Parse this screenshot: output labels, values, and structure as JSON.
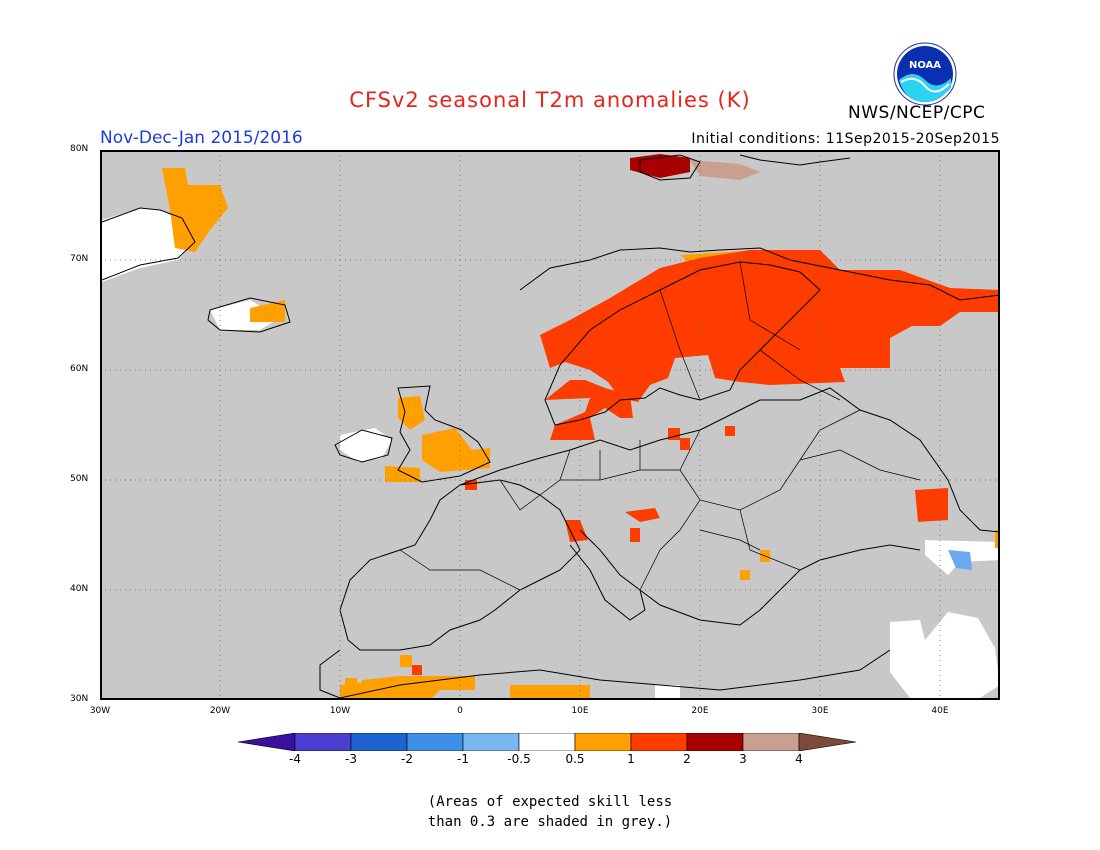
{
  "title": "CFSv2 seasonal T2m anomalies (K)",
  "period": "Nov-Dec-Jan 2015/2016",
  "initial_conditions": "Initial conditions: 11Sep2015-20Sep2015",
  "agency": "NWS/NCEP/CPC",
  "logo_text": "NOAA",
  "lat_labels": [
    "80N",
    "70N",
    "60N",
    "50N",
    "40N",
    "30N"
  ],
  "lon_labels": [
    "30W",
    "20W",
    "10W",
    "0",
    "10E",
    "20E",
    "30E",
    "40E"
  ],
  "colorbar": {
    "ticks": [
      "-4",
      "-3",
      "-2",
      "-1",
      "-0.5",
      "0.5",
      "1",
      "2",
      "3",
      "4"
    ],
    "colors": [
      "#3a10a0",
      "#4a3fd0",
      "#1f63d0",
      "#3d8fe8",
      "#7ab6f0",
      "#ffffff",
      "#ffa000",
      "#ff3c00",
      "#a80000",
      "#c9a090",
      "#7b4a3a"
    ]
  },
  "note_line1": "(Areas of expected skill less",
  "note_line2": "than 0.3 are shaded in grey.)",
  "colors": {
    "skill_grey": "#c8c8c8",
    "title_red": "#e8231c",
    "period_blue": "#1f3cd8"
  }
}
